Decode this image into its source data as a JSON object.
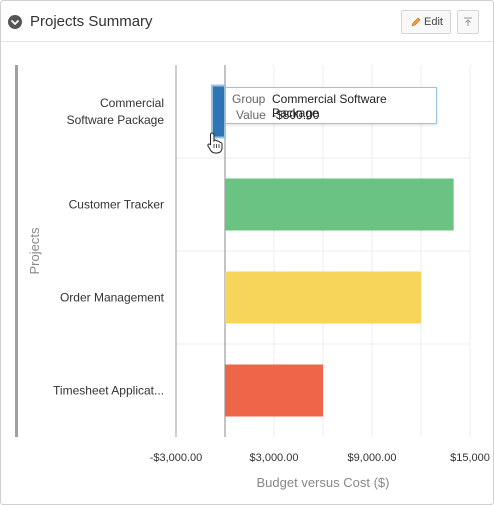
{
  "header": {
    "title": "Projects Summary",
    "edit_label": "Edit"
  },
  "chart_data": {
    "type": "bar",
    "orientation": "horizontal",
    "categories": [
      "Commercial Software Package",
      "Customer Tracker",
      "Order Management",
      "Timesheet Applicat..."
    ],
    "category_lines": [
      [
        "Commercial",
        "Software Package"
      ],
      [
        "Customer Tracker"
      ],
      [
        "Order Management"
      ],
      [
        "Timesheet Applicat..."
      ]
    ],
    "values": [
      -800,
      14000,
      12000,
      6000
    ],
    "colors": [
      "#2e75b6",
      "#6ac383",
      "#f7d55a",
      "#ee654a"
    ],
    "xlabel": "Budget versus Cost ($)",
    "ylabel": "Projects",
    "xlim": [
      -3000,
      15000
    ],
    "tick_labels": [
      "-$3,000.00",
      "$3,000.00",
      "$9,000.00",
      "$15,000"
    ],
    "tick_values": [
      -3000,
      3000,
      9000,
      15000
    ],
    "grid": true
  },
  "tooltip": {
    "group_key": "Group",
    "group_value": "Commercial Software Package",
    "value_key": "Value",
    "value_value": "-$800.00"
  }
}
